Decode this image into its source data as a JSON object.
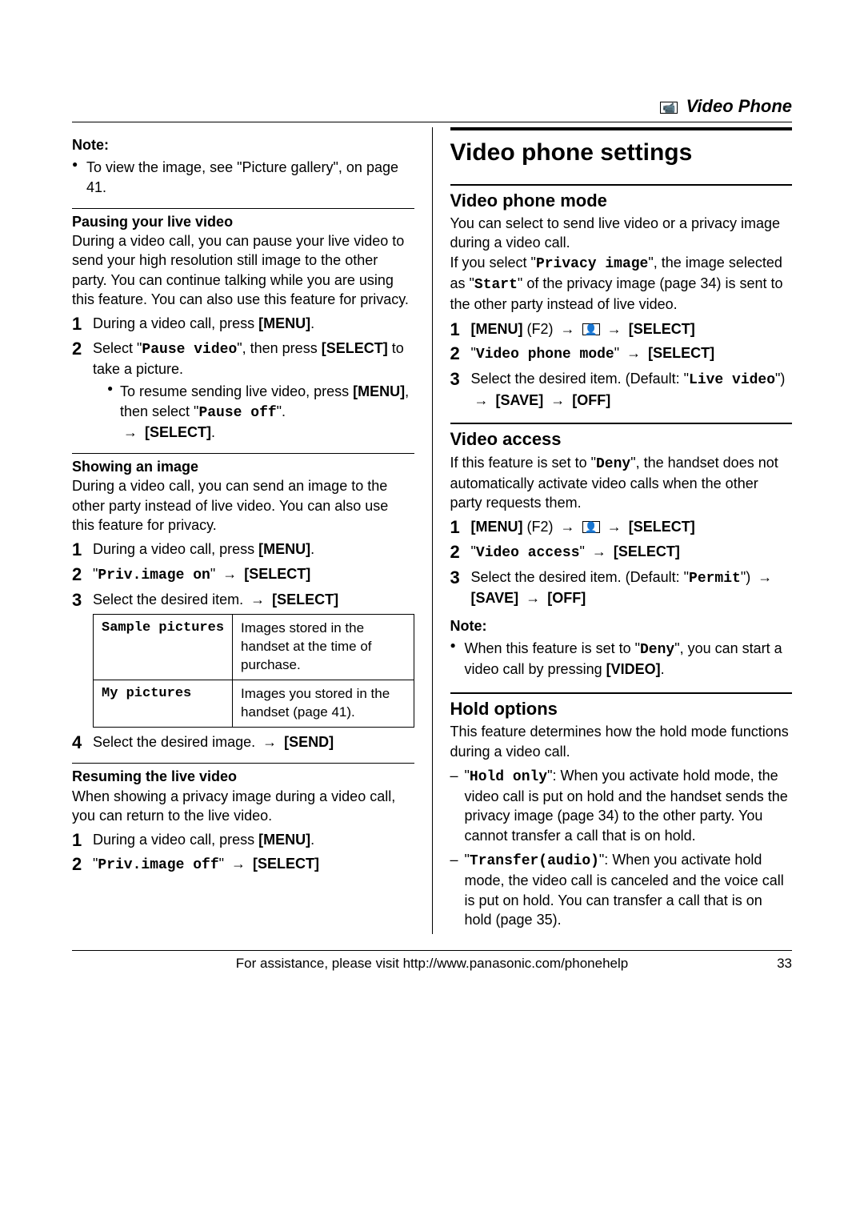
{
  "header": {
    "icon": "📹",
    "title": "Video Phone"
  },
  "left": {
    "noteLabel": "Note:",
    "noteBullet": "To view the image, see \"Picture gallery\", on page 41.",
    "pause": {
      "head": "Pausing your live video",
      "body": "During a video call, you can pause your live video to send your high resolution still image to the other party. You can continue talking while you are using this feature. You can also use this feature for privacy.",
      "step1a": "During a video call, press ",
      "step1b": "[MENU]",
      "step1c": ".",
      "step2a": "Select \"",
      "step2b": "Pause video",
      "step2c": "\", then press ",
      "step2d": "[SELECT]",
      "step2e": " to take a picture.",
      "sub_a": "To resume sending live video, press ",
      "sub_b": "[MENU]",
      "sub_c": ", then select \"",
      "sub_d": "Pause off",
      "sub_e": "\". ",
      "sub_f": "[SELECT]",
      "sub_g": "."
    },
    "show": {
      "head": "Showing an image",
      "body": "During a video call, you can send an image to the other party instead of live video. You can also use this feature for privacy.",
      "step1a": "During a video call, press ",
      "step1b": "[MENU]",
      "step1c": ".",
      "step2a": "\"",
      "step2b": "Priv.image on",
      "step2c": "\" ",
      "step2d": "[SELECT]",
      "step3a": "Select the desired item. ",
      "step3b": "[SELECT]",
      "table": {
        "r1c1": "Sample pictures",
        "r1c2": "Images stored in the handset at the time of purchase.",
        "r2c1": "My pictures",
        "r2c2": "Images you stored in the handset (page 41)."
      },
      "step4a": "Select the desired image. ",
      "step4b": "[SEND]"
    },
    "resume": {
      "head": "Resuming the live video",
      "body": "When showing a privacy image during a video call, you can return to the live video.",
      "step1a": "During a video call, press ",
      "step1b": "[MENU]",
      "step1c": ".",
      "step2a": "\"",
      "step2b": "Priv.image off",
      "step2c": "\" ",
      "step2d": "[SELECT]"
    }
  },
  "right": {
    "h1": "Video phone settings",
    "mode": {
      "h2": "Video phone mode",
      "body1": "You can select to send live video or a privacy image during a video call.",
      "body2a": "If you select \"",
      "body2b": "Privacy image",
      "body2c": "\", the image selected as \"",
      "body2d": "Start",
      "body2e": "\" of the privacy image (page 34) is sent to the other party instead of live video.",
      "step1a": "[MENU]",
      "step1b": " (F2) ",
      "step1c": "[SELECT]",
      "step2a": "\"",
      "step2b": "Video phone mode",
      "step2c": "\" ",
      "step2d": "[SELECT]",
      "step3a": "Select the desired item. (Default: \"",
      "step3b": "Live video",
      "step3c": "\") ",
      "step3d": "[SAVE]",
      "step3e": "[OFF]"
    },
    "access": {
      "h2": "Video access",
      "body_a": "If this feature is set to \"",
      "body_b": "Deny",
      "body_c": "\", the handset does not automatically activate video calls when the other party requests them.",
      "step1a": "[MENU]",
      "step1b": " (F2) ",
      "step1c": "[SELECT]",
      "step2a": "\"",
      "step2b": "Video access",
      "step2c": "\" ",
      "step2d": "[SELECT]",
      "step3a": "Select the desired item. (Default: \"",
      "step3b": "Permit",
      "step3c": "\") ",
      "step3d": "[SAVE]",
      "step3e": "[OFF]",
      "noteLabel": "Note:",
      "note_a": "When this feature is set to \"",
      "note_b": "Deny",
      "note_c": "\", you can start a video call by pressing ",
      "note_d": "[VIDEO]",
      "note_e": "."
    },
    "hold": {
      "h2": "Hold options",
      "body": "This feature determines how the hold mode functions during a video call.",
      "d1a": "\"",
      "d1b": "Hold only",
      "d1c": "\": When you activate hold mode, the video call is put on hold and the handset sends the privacy image (page 34) to the other party. You cannot transfer a call that is on hold.",
      "d2a": "\"",
      "d2b": "Transfer(audio)",
      "d2c": "\": When you activate hold mode, the video call is canceled and the voice call is put on hold. You can transfer a call that is on hold (page 35)."
    }
  },
  "footer": {
    "text": "For assistance, please visit http://www.panasonic.com/phonehelp",
    "page": "33"
  },
  "arrow": "→",
  "videoIcon": "👤"
}
